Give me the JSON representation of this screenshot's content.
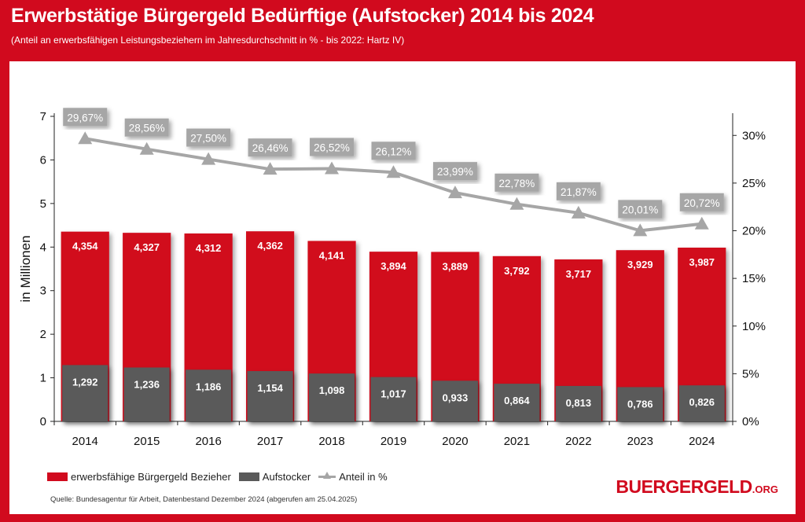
{
  "header": {
    "title": "Erwerbstätige Bürgergeld Bedürftige (Aufstocker) 2014 bis 2024",
    "subtitle": "(Anteil an erwerbsfähigen Leistungsbeziehern im Jahresdurchschnitt in % - bis 2022: Hartz IV)"
  },
  "colors": {
    "background": "#d10a1e",
    "bar_primary": "#d10a1e",
    "bar_secondary": "#5a5a5a",
    "line": "#a6a6a6"
  },
  "chart_data": {
    "type": "bar",
    "categories": [
      "2014",
      "2015",
      "2016",
      "2017",
      "2018",
      "2019",
      "2020",
      "2021",
      "2022",
      "2023",
      "2024"
    ],
    "series": [
      {
        "name": "erwerbsfähige Bürgergeld Bezieher",
        "type": "bar",
        "axis": "left",
        "values": [
          4.354,
          4.327,
          4.312,
          4.362,
          4.141,
          3.894,
          3.889,
          3.792,
          3.717,
          3.929,
          3.987
        ],
        "labels": [
          "4,354",
          "4,327",
          "4,312",
          "4,362",
          "4,141",
          "3,894",
          "3,889",
          "3,792",
          "3,717",
          "3,929",
          "3,987"
        ]
      },
      {
        "name": "Aufstocker",
        "type": "bar",
        "axis": "left",
        "values": [
          1.292,
          1.236,
          1.186,
          1.154,
          1.098,
          1.017,
          0.933,
          0.864,
          0.813,
          0.786,
          0.826
        ],
        "labels": [
          "1,292",
          "1,236",
          "1,186",
          "1,154",
          "1,098",
          "1,017",
          "0,933",
          "0,864",
          "0,813",
          "0,786",
          "0,826"
        ]
      },
      {
        "name": "Anteil in %",
        "type": "line",
        "axis": "right",
        "values": [
          29.67,
          28.56,
          27.5,
          26.46,
          26.52,
          26.12,
          23.99,
          22.78,
          21.87,
          20.01,
          20.72
        ],
        "labels": [
          "29,67%",
          "28,56%",
          "27,50%",
          "26,46%",
          "26,52%",
          "26,12%",
          "23,99%",
          "22,78%",
          "21,87%",
          "20,01%",
          "20,72%"
        ]
      }
    ],
    "ylabel": "in Millionen",
    "ylim": [
      0,
      7
    ],
    "yticks": [
      "0",
      "1",
      "2",
      "3",
      "4",
      "5",
      "6",
      "7"
    ],
    "y2lim": [
      0,
      32
    ],
    "y2ticks": [
      {
        "value": 0,
        "label": "0%"
      },
      {
        "value": 5,
        "label": "5%"
      },
      {
        "value": 10,
        "label": "10%"
      },
      {
        "value": 15,
        "label": "15%"
      },
      {
        "value": 20,
        "label": "20%"
      },
      {
        "value": 25,
        "label": "25%"
      },
      {
        "value": 30,
        "label": "30%"
      }
    ],
    "legend_position": "bottom-left"
  },
  "legend": {
    "primary": "erwerbsfähige Bürgergeld Bezieher",
    "secondary": "Aufstocker",
    "line": "Anteil in %"
  },
  "footer": {
    "source": "Quelle: Bundesagentur für Arbeit, Datenbestand Dezember 2024 (abgerufen am 25.04.2025)",
    "brand": "BUERGERGELD",
    "brand_suffix": ".ORG"
  }
}
